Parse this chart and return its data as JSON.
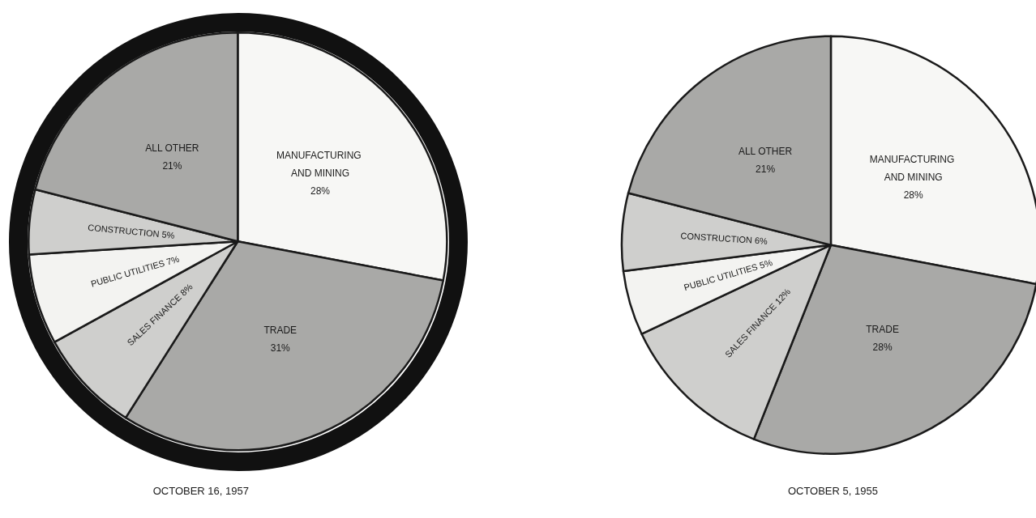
{
  "chart_data": [
    {
      "type": "pie",
      "title": "OCTOBER 16, 1957",
      "categories": [
        "MANUFACTURING AND MINING",
        "TRADE",
        "SALES FINANCE",
        "PUBLIC UTILITIES",
        "CONSTRUCTION",
        "ALL OTHER"
      ],
      "values": [
        28,
        31,
        8,
        7,
        5,
        21
      ],
      "value_labels": [
        "28%",
        "31%",
        "8%",
        "7%",
        "5%",
        "21%"
      ],
      "colors": [
        "#f7f7f5",
        "#a9a9a7",
        "#cfcfcd",
        "#f3f3f1",
        "#cfcfcd",
        "#a9a9a7"
      ]
    },
    {
      "type": "pie",
      "title": "OCTOBER 5, 1955",
      "categories": [
        "MANUFACTURING AND MINING",
        "TRADE",
        "SALES FINANCE",
        "PUBLIC UTILITIES",
        "CONSTRUCTION",
        "ALL OTHER"
      ],
      "values": [
        28,
        28,
        12,
        5,
        6,
        21
      ],
      "value_labels": [
        "28%",
        "28%",
        "12%",
        "5%",
        "6%",
        "21%"
      ],
      "colors": [
        "#f7f7f5",
        "#a9a9a7",
        "#cfcfcd",
        "#f3f3f1",
        "#cfcfcd",
        "#a9a9a7"
      ]
    }
  ]
}
